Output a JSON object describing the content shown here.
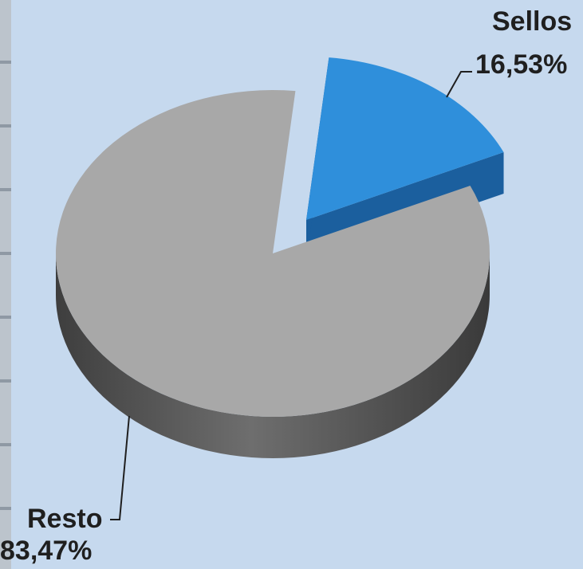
{
  "chart_data": {
    "type": "pie",
    "style": "3d-exploded",
    "slices": [
      {
        "name": "Sellos",
        "value": 16.53,
        "value_label": "16,53%",
        "color": "#2f8fdb",
        "side_color": "#1b5f9e",
        "exploded": true
      },
      {
        "name": "Resto",
        "value": 83.47,
        "value_label": "83,47%",
        "color": "#a8a8a8",
        "side_color": "#555555",
        "exploded": false
      }
    ],
    "title": "",
    "legend": "none"
  },
  "colors": {
    "panel_background": "#c6d9ee",
    "left_strip": "#bcc4cc"
  }
}
